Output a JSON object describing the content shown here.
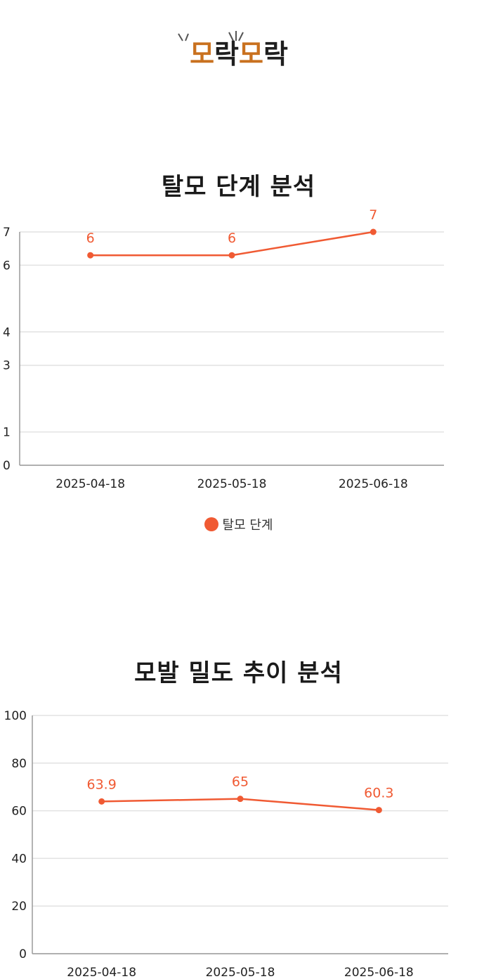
{
  "logo": {
    "part1": "모락",
    "part2": "모락",
    "color_dark": "#1f1f1f",
    "color_accent": "#c9711f"
  },
  "legend": {
    "label": "탈모 단계",
    "color": "#f05a33"
  },
  "chart_data": [
    {
      "type": "line",
      "title": "탈모 단계 분석",
      "categories": [
        "2025-04-18",
        "2025-05-18",
        "2025-06-18"
      ],
      "ylim": [
        0,
        7
      ],
      "yticks": [
        0,
        1,
        3,
        4,
        6,
        7
      ],
      "grid": true,
      "legend_position": "bottom",
      "series": [
        {
          "name": "탈모 단계",
          "values": [
            6.3,
            6.3,
            7
          ],
          "labels": [
            "6",
            "6",
            "7"
          ],
          "color": "#f05a33"
        }
      ]
    },
    {
      "type": "line",
      "title": "모발 밀도 추이 분석",
      "categories": [
        "2025-04-18",
        "2025-05-18",
        "2025-06-18"
      ],
      "ylim": [
        0,
        100
      ],
      "yticks": [
        0,
        20,
        40,
        60,
        80,
        100
      ],
      "grid": true,
      "series": [
        {
          "values": [
            63.9,
            65,
            60.3
          ],
          "labels": [
            "63.9",
            "65",
            "60.3"
          ],
          "color": "#f05a33"
        }
      ]
    }
  ]
}
